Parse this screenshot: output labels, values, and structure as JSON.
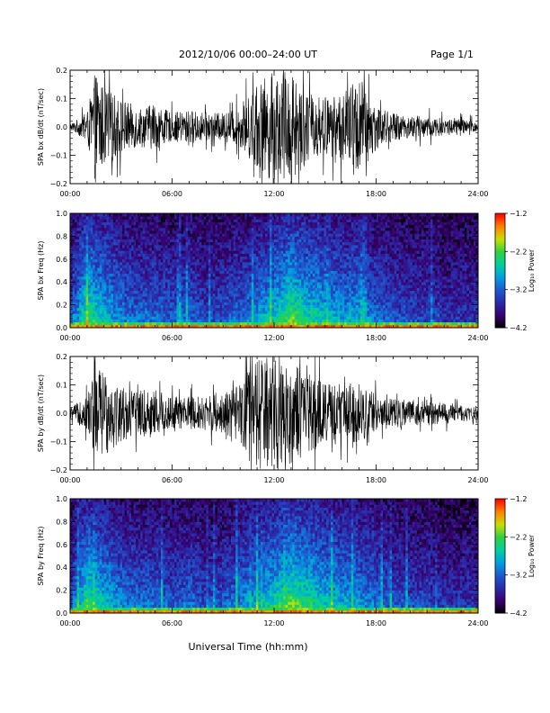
{
  "header": {
    "title": "2012/10/06  00:00–24:00 UT",
    "page": "Page 1/1"
  },
  "footer": {
    "xlabel": "Universal Time (hh:mm)"
  },
  "colors": {
    "trace": "#000000",
    "colormap": [
      "#000000",
      "#3a0070",
      "#2a2aa8",
      "#1e5ad0",
      "#00a0e0",
      "#00d0a0",
      "#30d040",
      "#c8e000",
      "#ff8000",
      "#ff0000"
    ]
  },
  "chart_data": [
    {
      "type": "line",
      "title": "",
      "xlabel": "",
      "ylabel": "SPA bx dB/dt (nT/sec)",
      "x_ticks": [
        "00:00",
        "06:00",
        "12:00",
        "18:00",
        "24:00"
      ],
      "xlim": [
        0,
        24
      ],
      "ylim": [
        -0.2,
        0.2
      ],
      "y_ticks": [
        "−0.2",
        "−0.1",
        "0.0",
        "0.1",
        "0.2"
      ],
      "series": [
        {
          "x": [
            0,
            1,
            1.5,
            2,
            3,
            4,
            5,
            6,
            7,
            8,
            9,
            10,
            11,
            12,
            13,
            14,
            15,
            16,
            17,
            18,
            19,
            20,
            21,
            22,
            23,
            24
          ],
          "amplitude": [
            0.01,
            0.05,
            0.2,
            0.14,
            0.1,
            0.07,
            0.08,
            0.05,
            0.06,
            0.05,
            0.05,
            0.07,
            0.15,
            0.2,
            0.2,
            0.12,
            0.1,
            0.12,
            0.18,
            0.08,
            0.05,
            0.04,
            0.04,
            0.03,
            0.03,
            0.02
          ]
        }
      ]
    },
    {
      "type": "heatmap",
      "title": "",
      "xlabel": "",
      "ylabel": "SPA bx Freq (Hz)",
      "x_ticks": [
        "00:00",
        "06:00",
        "12:00",
        "18:00",
        "24:00"
      ],
      "xlim": [
        0,
        24
      ],
      "ylim": [
        0,
        1.0
      ],
      "y_ticks": [
        "0.0",
        "0.2",
        "0.4",
        "0.6",
        "0.8",
        "1.0"
      ],
      "colorbar": {
        "label": "Log₁₀ Power",
        "ticks": [
          "−1.2",
          "−2.2",
          "−3.2",
          "−4.2"
        ],
        "range": [
          -4.2,
          -1.2
        ]
      },
      "activity_profile": {
        "hours": [
          0,
          1,
          2,
          3,
          4,
          5,
          6,
          7,
          8,
          9,
          10,
          11,
          12,
          13,
          14,
          15,
          16,
          17,
          18,
          19,
          20,
          21,
          22,
          23,
          24
        ],
        "level": [
          0.35,
          0.8,
          0.65,
          0.5,
          0.45,
          0.45,
          0.4,
          0.45,
          0.35,
          0.4,
          0.45,
          0.55,
          0.65,
          0.85,
          0.7,
          0.65,
          0.55,
          0.6,
          0.45,
          0.4,
          0.35,
          0.35,
          0.3,
          0.3,
          0.3
        ]
      }
    },
    {
      "type": "line",
      "title": "",
      "xlabel": "",
      "ylabel": "SPA by dB/dt (nT/sec)",
      "x_ticks": [
        "00:00",
        "06:00",
        "12:00",
        "18:00",
        "24:00"
      ],
      "xlim": [
        0,
        24
      ],
      "ylim": [
        -0.2,
        0.2
      ],
      "y_ticks": [
        "−0.2",
        "−0.1",
        "0.0",
        "0.1",
        "0.2"
      ],
      "series": [
        {
          "x": [
            0,
            1,
            1.5,
            2,
            3,
            4,
            5,
            6,
            7,
            8,
            9,
            10,
            11,
            12,
            13,
            14,
            15,
            16,
            17,
            18,
            19,
            20,
            21,
            22,
            23,
            24
          ],
          "amplitude": [
            0.02,
            0.06,
            0.2,
            0.15,
            0.1,
            0.08,
            0.09,
            0.06,
            0.06,
            0.06,
            0.07,
            0.1,
            0.2,
            0.2,
            0.18,
            0.14,
            0.11,
            0.11,
            0.1,
            0.07,
            0.05,
            0.05,
            0.04,
            0.04,
            0.03,
            0.02
          ]
        }
      ]
    },
    {
      "type": "heatmap",
      "title": "",
      "xlabel": "",
      "ylabel": "SPA by Freq (Hz)",
      "x_ticks": [
        "00:00",
        "06:00",
        "12:00",
        "18:00",
        "24:00"
      ],
      "xlim": [
        0,
        24
      ],
      "ylim": [
        0,
        1.0
      ],
      "y_ticks": [
        "0.0",
        "0.2",
        "0.4",
        "0.6",
        "0.8",
        "1.0"
      ],
      "colorbar": {
        "label": "Log₁₀ Power",
        "ticks": [
          "−1.2",
          "−2.2",
          "−3.2",
          "−4.2"
        ],
        "range": [
          -4.2,
          -1.2
        ]
      },
      "activity_profile": {
        "hours": [
          0,
          1,
          2,
          3,
          4,
          5,
          6,
          7,
          8,
          9,
          10,
          11,
          12,
          13,
          14,
          15,
          16,
          17,
          18,
          19,
          20,
          21,
          22,
          23,
          24
        ],
        "level": [
          0.35,
          0.8,
          0.65,
          0.5,
          0.45,
          0.45,
          0.4,
          0.45,
          0.35,
          0.4,
          0.5,
          0.6,
          0.7,
          0.85,
          0.75,
          0.65,
          0.6,
          0.55,
          0.45,
          0.4,
          0.35,
          0.35,
          0.3,
          0.3,
          0.3
        ]
      }
    }
  ]
}
